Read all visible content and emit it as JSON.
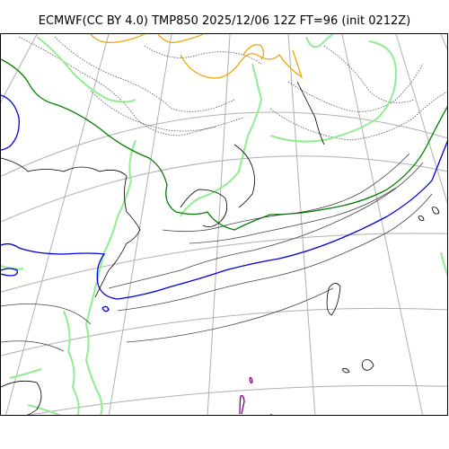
{
  "title": "ECMWF(CC BY 4.0) TMP850 2025/12/06 12Z FT=96 (init 0212Z)",
  "colors": {
    "graticule": "#b0b0b0",
    "coastline": "#000000",
    "isotherm_dotted": "#555555",
    "isotherm_orange": "#f0a000",
    "isotherm_lightgreen": "#90ee90",
    "isotherm_green": "#008000",
    "isotherm_blue": "#0000dd",
    "isotherm_purple": "#800080",
    "isotherm_thin": "#444444"
  }
}
